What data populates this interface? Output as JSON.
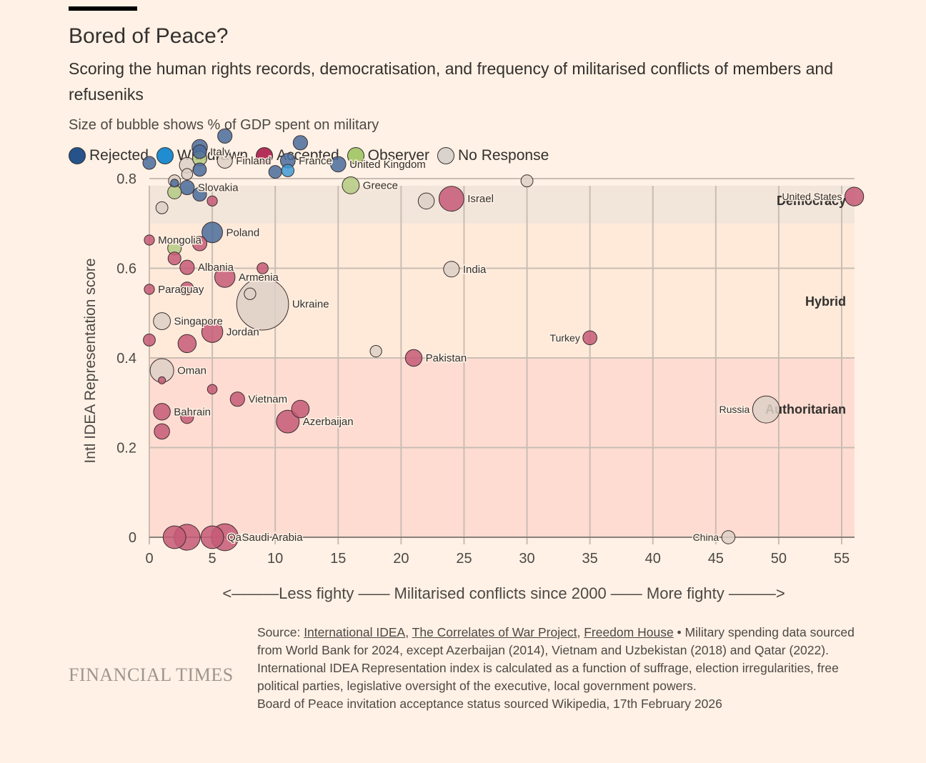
{
  "header": {
    "title": "Bored of Peace?",
    "subtitle": "Scoring the human rights records, democratisation, and frequency of militarised conflicts of members and refuseniks",
    "size_note": "Size of bubble shows % of GDP spent on military"
  },
  "legend": [
    {
      "label": "Rejected",
      "color": "#25538a"
    },
    {
      "label": "Withdrawn",
      "color": "#1f8dd0"
    },
    {
      "label": "Accepted",
      "color": "#b5305a"
    },
    {
      "label": "Observer",
      "color": "#a9c96e"
    },
    {
      "label": "No Response",
      "color": "#dad2cc"
    }
  ],
  "chart_data": {
    "type": "scatter",
    "title": "Bored of Peace?",
    "xlabel": "<———Less fighty —— Militarised conflicts since 2000 —— More fighty ———>",
    "ylabel": "Intl IDEA Representation score",
    "xlim": [
      0,
      56
    ],
    "ylim": [
      0,
      0.95
    ],
    "xticks": [
      "0",
      "5",
      "10",
      "15",
      "20",
      "25",
      "30",
      "35",
      "40",
      "45",
      "50",
      "55"
    ],
    "xtick_values": [
      0,
      5,
      10,
      15,
      20,
      25,
      30,
      35,
      40,
      45,
      50,
      55
    ],
    "yticks": [
      "0",
      "0.2",
      "0.4",
      "0.6",
      "0.8"
    ],
    "ytick_values": [
      0,
      0.2,
      0.4,
      0.6,
      0.8
    ],
    "grid": true,
    "bands": [
      {
        "label": "Democracy",
        "from": 0.7,
        "to": 0.95,
        "color": "#f2e5da"
      },
      {
        "label": "Hybrid",
        "from": 0.4,
        "to": 0.7,
        "color": "#ffeada"
      },
      {
        "label": "Authoritarian",
        "from": 0,
        "to": 0.4,
        "color": "#ffdcd2"
      }
    ],
    "status_colors": {
      "Rejected": "#4a6c9b",
      "Withdrawn": "#3d9ad6",
      "Accepted": "#c55a77",
      "Observer": "#b4cb83",
      "No Response": "#ddd0c6"
    },
    "points": [
      {
        "label": "",
        "x": 0,
        "y": 0.835,
        "size": 1.6,
        "status": "Rejected"
      },
      {
        "label": "",
        "x": 4,
        "y": 0.87,
        "size": 2.3,
        "status": "Rejected"
      },
      {
        "label": "Italy",
        "x": 4,
        "y": 0.86,
        "size": 1.8,
        "status": "Rejected"
      },
      {
        "label": "",
        "x": 4,
        "y": 0.845,
        "size": 2.0,
        "status": "Observer"
      },
      {
        "label": "",
        "x": 6,
        "y": 0.895,
        "size": 2.0,
        "status": "Rejected"
      },
      {
        "label": "Finland",
        "x": 6,
        "y": 0.84,
        "size": 2.2,
        "status": "No Response"
      },
      {
        "label": "",
        "x": 3,
        "y": 0.83,
        "size": 2.3,
        "status": "No Response"
      },
      {
        "label": "",
        "x": 3,
        "y": 0.81,
        "size": 1.2,
        "status": "No Response"
      },
      {
        "label": "",
        "x": 4,
        "y": 0.82,
        "size": 1.7,
        "status": "Rejected"
      },
      {
        "label": "",
        "x": 2,
        "y": 0.795,
        "size": 1.4,
        "status": "No Response"
      },
      {
        "label": "",
        "x": 2,
        "y": 0.79,
        "size": 0.6,
        "status": "Rejected"
      },
      {
        "label": "",
        "x": 2,
        "y": 0.77,
        "size": 1.8,
        "status": "Observer"
      },
      {
        "label": "Slovakia",
        "x": 3,
        "y": 0.78,
        "size": 2.0,
        "status": "Rejected"
      },
      {
        "label": "",
        "x": 4,
        "y": 0.765,
        "size": 1.8,
        "status": "Rejected"
      },
      {
        "label": "",
        "x": 5,
        "y": 0.75,
        "size": 1.0,
        "status": "Accepted"
      },
      {
        "label": "",
        "x": 1,
        "y": 0.735,
        "size": 1.4,
        "status": "No Response"
      },
      {
        "label": "",
        "x": 12,
        "y": 0.88,
        "size": 2.0,
        "status": "Rejected"
      },
      {
        "label": "France",
        "x": 11,
        "y": 0.84,
        "size": 2.1,
        "status": "Rejected"
      },
      {
        "label": "",
        "x": 10,
        "y": 0.815,
        "size": 1.6,
        "status": "Rejected"
      },
      {
        "label": "",
        "x": 11,
        "y": 0.818,
        "size": 1.5,
        "status": "Withdrawn"
      },
      {
        "label": "United Kingdom",
        "x": 15,
        "y": 0.832,
        "size": 2.3,
        "status": "Rejected"
      },
      {
        "label": "Greece",
        "x": 16,
        "y": 0.785,
        "size": 2.8,
        "status": "Observer"
      },
      {
        "label": "",
        "x": 22,
        "y": 0.75,
        "size": 2.5,
        "status": "No Response"
      },
      {
        "label": "Israel",
        "x": 24,
        "y": 0.755,
        "size": 6.0,
        "status": "Accepted"
      },
      {
        "label": "",
        "x": 30,
        "y": 0.795,
        "size": 1.4,
        "status": "No Response"
      },
      {
        "label": "United States",
        "x": 56,
        "y": 0.76,
        "size": 3.4,
        "status": "Accepted"
      },
      {
        "label": "Poland",
        "x": 5,
        "y": 0.68,
        "size": 4.1,
        "status": "Rejected"
      },
      {
        "label": "Mongolia",
        "x": 0,
        "y": 0.663,
        "size": 1.0,
        "status": "Accepted"
      },
      {
        "label": "",
        "x": 4,
        "y": 0.655,
        "size": 2.0,
        "status": "Accepted"
      },
      {
        "label": "",
        "x": 2,
        "y": 0.645,
        "size": 1.8,
        "status": "Observer"
      },
      {
        "label": "",
        "x": 2,
        "y": 0.622,
        "size": 1.6,
        "status": "Accepted"
      },
      {
        "label": "Albania",
        "x": 3,
        "y": 0.602,
        "size": 2.0,
        "status": "Accepted"
      },
      {
        "label": "",
        "x": 9,
        "y": 0.6,
        "size": 1.2,
        "status": "Accepted"
      },
      {
        "label": "Armenia",
        "x": 6,
        "y": 0.58,
        "size": 4.0,
        "status": "Accepted"
      },
      {
        "label": "Paraguay",
        "x": 0,
        "y": 0.553,
        "size": 1.0,
        "status": "Accepted"
      },
      {
        "label": "",
        "x": 3,
        "y": 0.555,
        "size": 1.6,
        "status": "Accepted"
      },
      {
        "label": "Ukraine",
        "x": 9,
        "y": 0.52,
        "size": 26.0,
        "status": "No Response"
      },
      {
        "label": "",
        "x": 8,
        "y": 0.543,
        "size": 1.3,
        "status": "No Response"
      },
      {
        "label": "Singapore",
        "x": 1,
        "y": 0.482,
        "size": 2.8,
        "status": "No Response"
      },
      {
        "label": "Jordan",
        "x": 5,
        "y": 0.458,
        "size": 4.3,
        "status": "Accepted"
      },
      {
        "label": "",
        "x": 3,
        "y": 0.432,
        "size": 3.2,
        "status": "Accepted"
      },
      {
        "label": "",
        "x": 0,
        "y": 0.44,
        "size": 1.4,
        "status": "Accepted"
      },
      {
        "label": "India",
        "x": 24,
        "y": 0.598,
        "size": 2.4,
        "status": "No Response"
      },
      {
        "label": "Turkey",
        "x": 35,
        "y": 0.445,
        "size": 1.9,
        "status": "Accepted"
      },
      {
        "label": "",
        "x": 18,
        "y": 0.415,
        "size": 1.3,
        "status": "No Response"
      },
      {
        "label": "Pakistan",
        "x": 21,
        "y": 0.4,
        "size": 2.7,
        "status": "Accepted"
      },
      {
        "label": "Oman",
        "x": 1,
        "y": 0.372,
        "size": 5.4,
        "status": "No Response"
      },
      {
        "label": "",
        "x": 1,
        "y": 0.35,
        "size": 0.5,
        "status": "Accepted"
      },
      {
        "label": "",
        "x": 5,
        "y": 0.33,
        "size": 0.9,
        "status": "Accepted"
      },
      {
        "label": "Vietnam",
        "x": 7,
        "y": 0.308,
        "size": 2.0,
        "status": "Accepted"
      },
      {
        "label": "Bahrain",
        "x": 1,
        "y": 0.28,
        "size": 2.7,
        "status": "Accepted"
      },
      {
        "label": "",
        "x": 3,
        "y": 0.268,
        "size": 1.6,
        "status": "Accepted"
      },
      {
        "label": "",
        "x": 1,
        "y": 0.236,
        "size": 2.3,
        "status": "Accepted"
      },
      {
        "label": "",
        "x": 12,
        "y": 0.286,
        "size": 3.0,
        "status": "Accepted"
      },
      {
        "label": "Azerbaijan",
        "x": 11,
        "y": 0.258,
        "size": 5.0,
        "status": "Accepted"
      },
      {
        "label": "Russia",
        "x": 49,
        "y": 0.285,
        "size": 7.1,
        "status": "No Response"
      },
      {
        "label": "",
        "x": 2,
        "y": 0,
        "size": 5.0,
        "status": "Accepted"
      },
      {
        "label": "",
        "x": 3,
        "y": 0,
        "size": 6.5,
        "status": "Accepted"
      },
      {
        "label": "Qatar",
        "x": 5,
        "y": 0,
        "size": 5.0,
        "status": "Accepted"
      },
      {
        "label": "Saudi Arabia",
        "x": 6,
        "y": 0,
        "size": 7.0,
        "status": "Accepted"
      },
      {
        "label": "China",
        "x": 46,
        "y": 0,
        "size": 1.7,
        "status": "No Response"
      }
    ]
  },
  "footer": {
    "logo": "FINANCIAL TIMES",
    "source_prefix": "Source: ",
    "links": [
      "International IDEA",
      "The Correlates of War Project",
      "Freedom House"
    ],
    "source_rest": " • Military spending data sourced from World Bank for 2024, except Azerbaijan (2014), Vietnam and Uzbekistan (2018) and Qatar (2022). International IDEA Representation index is calculated as a function of suffrage, election irregularities, free political parties, legislative oversight of the executive, local government powers.",
    "source_line2": "Board of Peace invitation acceptance status sourced Wikipedia, 17th February 2026"
  }
}
